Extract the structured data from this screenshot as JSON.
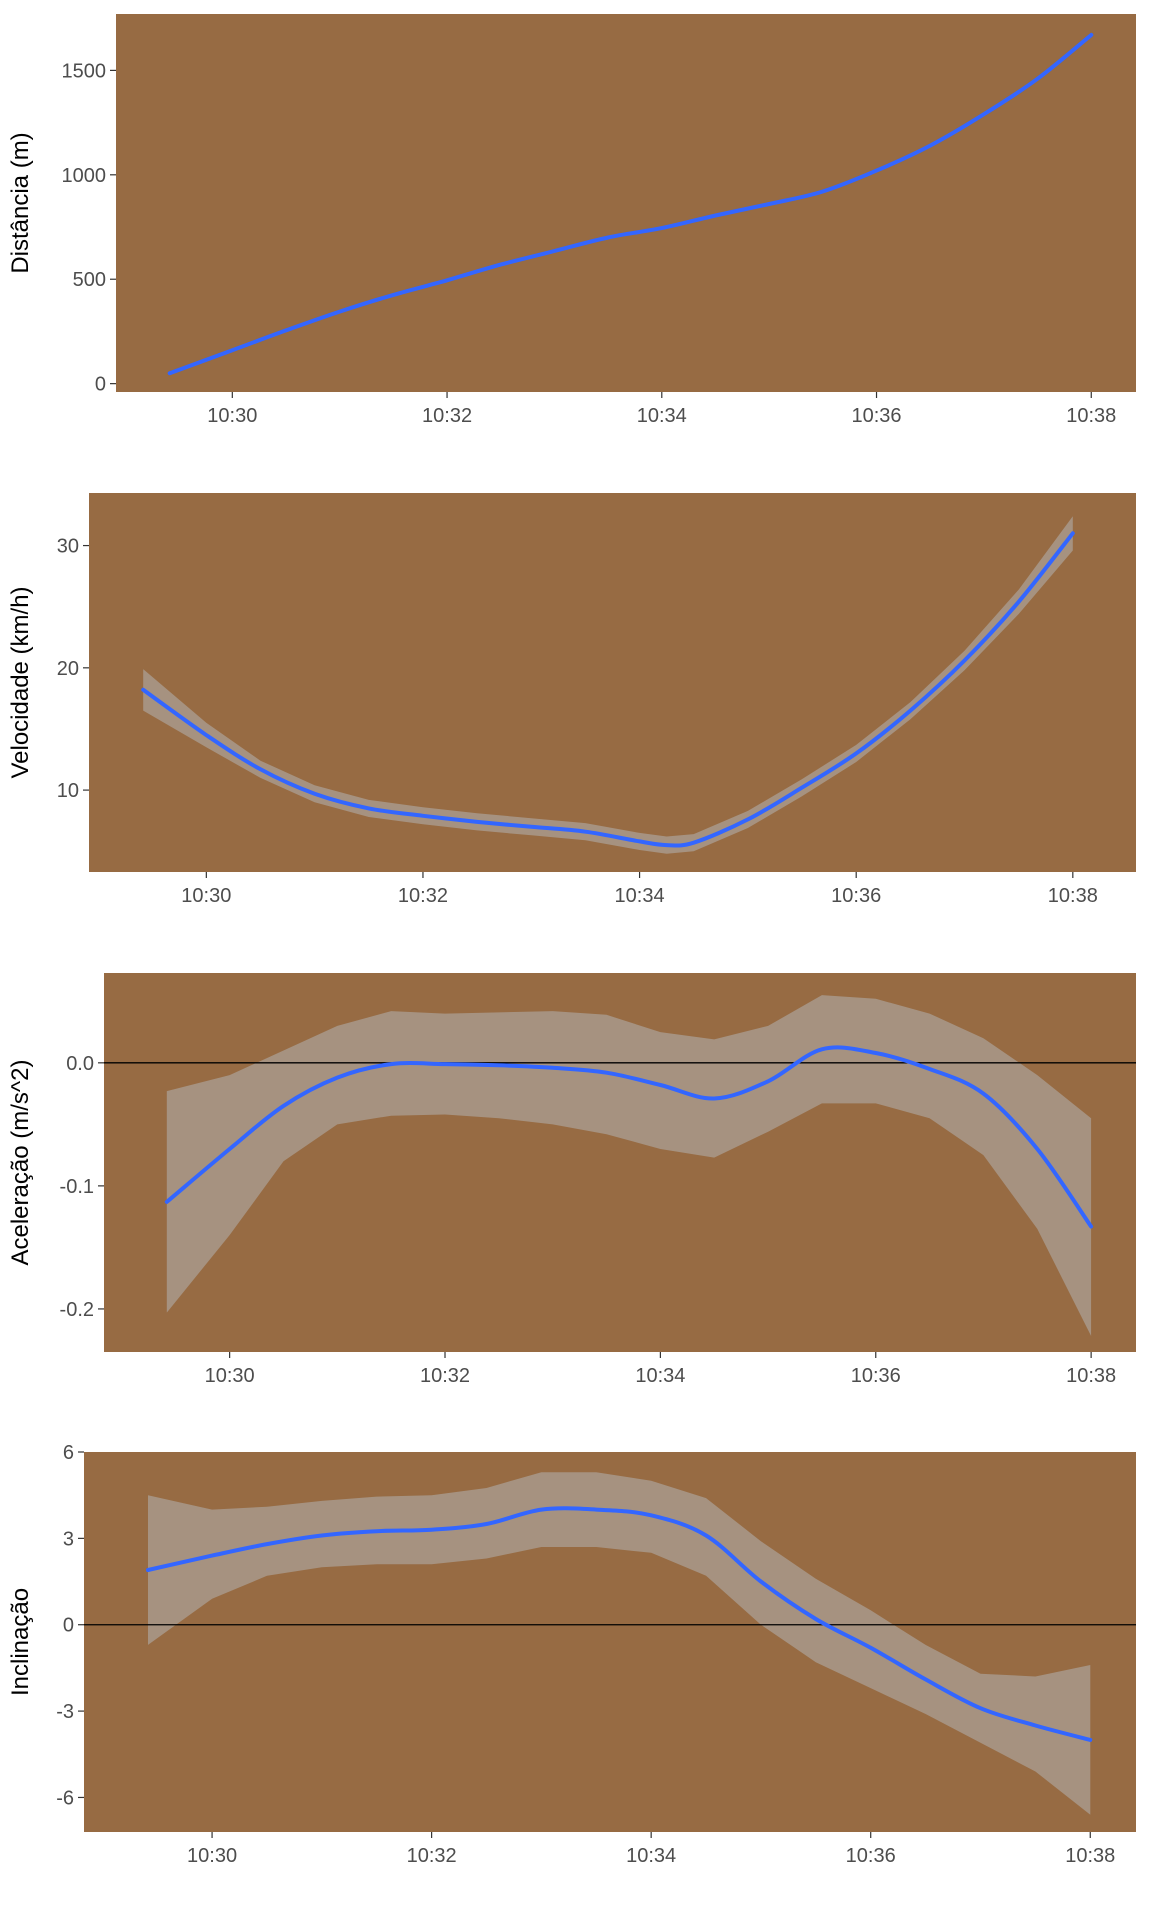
{
  "colors": {
    "panel_background": "#976B43",
    "line": "#3366FF",
    "ribbon": "#B3B3B3",
    "reference_line": "#000000",
    "tick_text": "#4D4D4D",
    "axis_title": "#000000"
  },
  "chart_data": [
    {
      "type": "line",
      "ylabel": "Distância (m)",
      "x_ticks": [
        "10:30",
        "10:32",
        "10:34",
        "10:36",
        "10:38"
      ],
      "y_ticks": [
        "0",
        "500",
        "1000",
        "1500"
      ],
      "xlim": [
        "10:28:55",
        "10:38:25"
      ],
      "ylim": [
        -40,
        1770
      ],
      "grid": false,
      "series": [
        {
          "x": [
            "10:29:25",
            "10:30:00",
            "10:30:30",
            "10:31:00",
            "10:31:30",
            "10:32:00",
            "10:32:30",
            "10:33:00",
            "10:33:30",
            "10:34:00",
            "10:34:30",
            "10:35:00",
            "10:35:30",
            "10:36:00",
            "10:36:30",
            "10:37:00",
            "10:37:30",
            "10:38:00"
          ],
          "y": [
            50,
            160,
            255,
            345,
            425,
            495,
            570,
            635,
            700,
            745,
            805,
            860,
            920,
            1020,
            1140,
            1290,
            1460,
            1670
          ]
        }
      ]
    },
    {
      "type": "line",
      "ylabel": "Velocidade (km/h)",
      "x_ticks": [
        "10:30",
        "10:32",
        "10:34",
        "10:36",
        "10:38"
      ],
      "y_ticks": [
        "10",
        "20",
        "30"
      ],
      "xlim": [
        "10:28:55",
        "10:38:35"
      ],
      "ylim": [
        3.3,
        34.3
      ],
      "grid": false,
      "series": [
        {
          "x": [
            "10:29:25",
            "10:30:00",
            "10:30:30",
            "10:31:00",
            "10:31:30",
            "10:32:00",
            "10:32:30",
            "10:33:00",
            "10:33:30",
            "10:34:00",
            "10:34:15",
            "10:34:30",
            "10:35:00",
            "10:35:30",
            "10:36:00",
            "10:36:30",
            "10:37:00",
            "10:37:30",
            "10:38:00"
          ],
          "y": [
            18.2,
            14.5,
            11.7,
            9.7,
            8.5,
            7.9,
            7.4,
            7.0,
            6.6,
            5.8,
            5.5,
            5.7,
            7.6,
            10.2,
            13.0,
            16.5,
            20.6,
            25.4,
            31.0
          ],
          "lower": [
            16.5,
            13.5,
            11.0,
            9.0,
            7.8,
            7.2,
            6.7,
            6.3,
            5.9,
            5.1,
            4.8,
            5.0,
            6.9,
            9.5,
            12.3,
            15.8,
            19.8,
            24.4,
            29.6
          ],
          "upper": [
            19.9,
            15.5,
            12.4,
            10.4,
            9.2,
            8.6,
            8.1,
            7.7,
            7.3,
            6.5,
            6.2,
            6.4,
            8.3,
            10.9,
            13.7,
            17.2,
            21.4,
            26.4,
            32.4
          ]
        }
      ]
    },
    {
      "type": "line",
      "ylabel": "Aceleração (m/s^2)",
      "x_ticks": [
        "10:30",
        "10:32",
        "10:34",
        "10:36",
        "10:38"
      ],
      "y_ticks": [
        "-0.2",
        "-0.1",
        "0.0"
      ],
      "xlim": [
        "10:28:50",
        "10:38:25"
      ],
      "ylim": [
        -0.235,
        0.073
      ],
      "grid": false,
      "reference_line": 0,
      "series": [
        {
          "x": [
            "10:29:25",
            "10:30:00",
            "10:30:30",
            "10:31:00",
            "10:31:30",
            "10:32:00",
            "10:32:30",
            "10:33:00",
            "10:33:30",
            "10:34:00",
            "10:34:30",
            "10:35:00",
            "10:35:30",
            "10:36:00",
            "10:36:30",
            "10:37:00",
            "10:37:30",
            "10:38:00"
          ],
          "y": [
            -0.113,
            -0.07,
            -0.035,
            -0.012,
            -0.001,
            -0.001,
            -0.002,
            -0.004,
            -0.008,
            -0.018,
            -0.029,
            -0.015,
            0.011,
            0.008,
            -0.005,
            -0.025,
            -0.07,
            -0.133
          ],
          "lower": [
            -0.203,
            -0.14,
            -0.08,
            -0.05,
            -0.043,
            -0.042,
            -0.045,
            -0.05,
            -0.058,
            -0.07,
            -0.077,
            -0.056,
            -0.033,
            -0.033,
            -0.045,
            -0.075,
            -0.135,
            -0.222
          ],
          "upper": [
            -0.023,
            -0.01,
            0.01,
            0.03,
            0.042,
            0.04,
            0.041,
            0.042,
            0.039,
            0.025,
            0.019,
            0.03,
            0.055,
            0.052,
            0.04,
            0.02,
            -0.01,
            -0.045
          ]
        }
      ]
    },
    {
      "type": "line",
      "ylabel": "Inclinação",
      "x_ticks": [
        "10:30",
        "10:32",
        "10:34",
        "10:36",
        "10:38"
      ],
      "y_ticks": [
        "-6",
        "-3",
        "0",
        "3",
        "6"
      ],
      "xlim": [
        "10:28:50",
        "10:38:25"
      ],
      "ylim": [
        -7.2,
        6.0
      ],
      "grid": false,
      "reference_line": 0,
      "series": [
        {
          "x": [
            "10:29:25",
            "10:30:00",
            "10:30:30",
            "10:31:00",
            "10:31:30",
            "10:32:00",
            "10:32:30",
            "10:33:00",
            "10:33:30",
            "10:34:00",
            "10:34:30",
            "10:35:00",
            "10:35:30",
            "10:36:00",
            "10:36:30",
            "10:37:00",
            "10:37:30",
            "10:38:00"
          ],
          "y": [
            1.9,
            2.4,
            2.8,
            3.1,
            3.25,
            3.3,
            3.5,
            4.0,
            4.0,
            3.8,
            3.1,
            1.5,
            0.2,
            -0.8,
            -1.9,
            -2.9,
            -3.5,
            -4.0
          ],
          "lower": [
            -0.7,
            0.9,
            1.7,
            2.0,
            2.1,
            2.1,
            2.3,
            2.7,
            2.7,
            2.5,
            1.7,
            0.0,
            -1.3,
            -2.2,
            -3.1,
            -4.1,
            -5.1,
            -6.6
          ],
          "upper": [
            4.5,
            4.0,
            4.1,
            4.3,
            4.45,
            4.5,
            4.75,
            5.3,
            5.3,
            5.0,
            4.4,
            2.9,
            1.6,
            0.5,
            -0.7,
            -1.7,
            -1.8,
            -1.4
          ]
        }
      ]
    }
  ]
}
